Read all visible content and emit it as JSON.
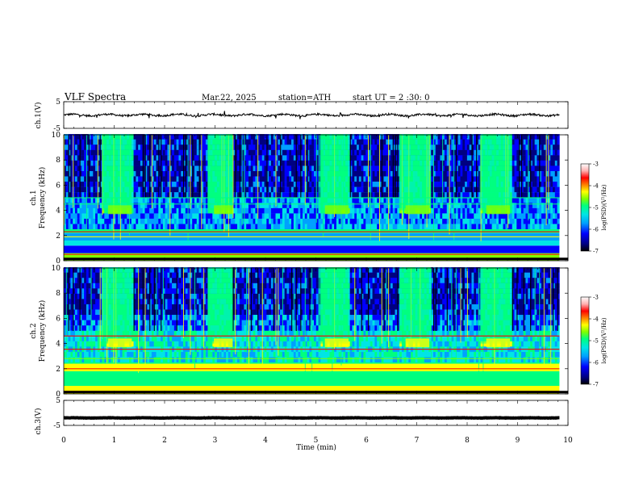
{
  "header": {
    "title": "VLF  Spectra",
    "date": "Mar.22, 2025",
    "station": "station=ATH",
    "start": "start  UT  =   2  :30: 0"
  },
  "colors": {
    "spectrogram_scale": [
      "#000080",
      "#0000ff",
      "#00a0ff",
      "#00e5e5",
      "#00ff7f",
      "#7fff00",
      "#ffff00",
      "#ff8000",
      "#ff0000",
      "#ffb0b0",
      "#ffffff"
    ],
    "waveform": "#000000"
  },
  "chart_data": [
    {
      "type": "line",
      "name": "ch1-waveform",
      "ylabel": "ch.1(V)",
      "ylim": [
        -5,
        5
      ],
      "yticks": [
        "5",
        "-5"
      ],
      "xlim": [
        0,
        10
      ],
      "description_values": {
        "mean": 0,
        "amplitude": 0.6
      }
    },
    {
      "type": "heatmap",
      "name": "ch1-spectrogram",
      "ylabel": "ch.1\nFrequency  (kHz)",
      "ylim": [
        0,
        10
      ],
      "yticks": [
        "0",
        "2",
        "4",
        "6",
        "8",
        "10"
      ],
      "xlim": [
        0,
        10
      ],
      "colorbar": {
        "label": "log(PSD)(V²/Hz)",
        "range": [
          -7,
          -3
        ],
        "ticks": [
          "-3",
          "-4",
          "-5",
          "-6",
          "-7"
        ]
      },
      "bursts": [
        [
          0.75,
          1.35
        ],
        [
          2.85,
          3.35
        ],
        [
          5.05,
          5.65
        ],
        [
          6.65,
          7.25
        ],
        [
          8.25,
          8.85
        ]
      ]
    },
    {
      "type": "heatmap",
      "name": "ch2-spectrogram",
      "ylabel": "ch.2\nFrequency  (kHz)",
      "ylim": [
        0,
        10
      ],
      "yticks": [
        "0",
        "2",
        "4",
        "6",
        "8",
        "10"
      ],
      "xlim": [
        0,
        10
      ],
      "colorbar": {
        "label": "log(PSD)(V²/Hz)",
        "range": [
          -7,
          -3
        ],
        "ticks": [
          "-3",
          "-4",
          "-5",
          "-6",
          "-7"
        ]
      },
      "bursts": [
        [
          0.75,
          1.35
        ],
        [
          2.85,
          3.35
        ],
        [
          5.05,
          5.65
        ],
        [
          6.65,
          7.25
        ],
        [
          8.25,
          8.85
        ]
      ]
    },
    {
      "type": "line",
      "name": "ch3-waveform",
      "ylabel": "ch.3(V)",
      "ylim": [
        -5,
        5
      ],
      "yticks": [
        "5",
        "-5"
      ],
      "xlim": [
        0,
        10
      ],
      "description_values": {
        "mean": -2,
        "amplitude": 0.1
      }
    }
  ],
  "xaxis": {
    "label": "Time  (min)",
    "ticks": [
      "0",
      "1",
      "2",
      "3",
      "4",
      "5",
      "6",
      "7",
      "8",
      "9",
      "10"
    ],
    "data_end": 9.83
  }
}
